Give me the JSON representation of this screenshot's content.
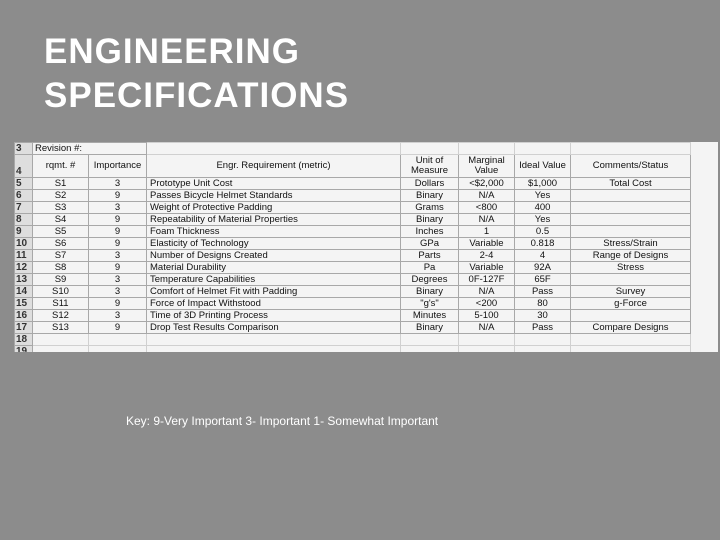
{
  "title_lines": [
    "ENGINEERING",
    "SPECIFICATIONS"
  ],
  "sheet": {
    "revision_label": "Revision #:",
    "header_row_number": "4",
    "revision_row_number": "3",
    "headers": [
      "rqmt. #",
      "Importance",
      "Engr. Requirement (metric)",
      "Unit of Measure",
      "Marginal Value",
      "Ideal Value",
      "Comments/Status"
    ],
    "rows": [
      {
        "rownum": "5",
        "cells": [
          "S1",
          "3",
          "Prototype Unit Cost",
          "Dollars",
          "<$2,000",
          "$1,000",
          "Total Cost"
        ]
      },
      {
        "rownum": "6",
        "cells": [
          "S2",
          "9",
          "Passes Bicycle Helmet Standards",
          "Binary",
          "N/A",
          "Yes",
          ""
        ]
      },
      {
        "rownum": "7",
        "cells": [
          "S3",
          "3",
          "Weight of Protective Padding",
          "Grams",
          "<800",
          "400",
          ""
        ]
      },
      {
        "rownum": "8",
        "cells": [
          "S4",
          "9",
          "Repeatability of Material Properties",
          "Binary",
          "N/A",
          "Yes",
          ""
        ]
      },
      {
        "rownum": "9",
        "cells": [
          "S5",
          "9",
          "Foam Thickness",
          "Inches",
          "1",
          "0.5",
          ""
        ]
      },
      {
        "rownum": "10",
        "cells": [
          "S6",
          "9",
          "Elasticity of Technology",
          "GPa",
          "Variable",
          "0.818",
          "Stress/Strain"
        ]
      },
      {
        "rownum": "11",
        "cells": [
          "S7",
          "3",
          "Number of Designs Created",
          "Parts",
          "2-4",
          "4",
          "Range of Designs"
        ]
      },
      {
        "rownum": "12",
        "cells": [
          "S8",
          "9",
          "Material Durability",
          "Pa",
          "Variable",
          "92A",
          "Stress"
        ]
      },
      {
        "rownum": "13",
        "cells": [
          "S9",
          "3",
          "Temperature Capabilities",
          "Degrees",
          "0F-127F",
          "65F",
          ""
        ]
      },
      {
        "rownum": "14",
        "cells": [
          "S10",
          "3",
          "Comfort of Helmet Fit with Padding",
          "Binary",
          "N/A",
          "Pass",
          "Survey"
        ]
      },
      {
        "rownum": "15",
        "cells": [
          "S11",
          "9",
          "Force of Impact Withstood",
          "\"g's\"",
          "<200",
          "80",
          "g-Force"
        ]
      },
      {
        "rownum": "16",
        "cells": [
          "S12",
          "3",
          "Time of 3D Printing Process",
          "Minutes",
          "5-100",
          "30",
          ""
        ]
      },
      {
        "rownum": "17",
        "cells": [
          "S13",
          "9",
          "Drop Test Results Comparison",
          "Binary",
          "N/A",
          "Pass",
          "Compare Designs"
        ]
      }
    ],
    "trailing_rows": [
      "18",
      "19"
    ]
  },
  "key_text": "Key: 9-Very Important 3- Important 1- Somewhat Important"
}
